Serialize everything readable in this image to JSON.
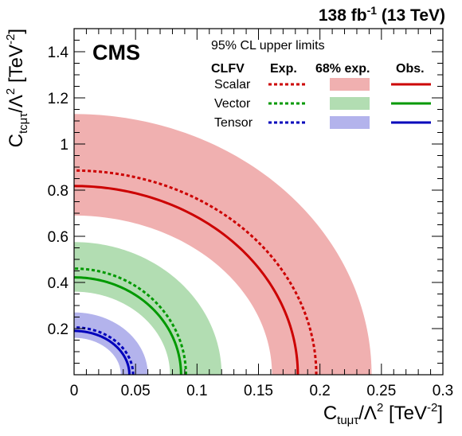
{
  "header": {
    "lumi_main": "138 fb",
    "lumi_exp": "-1",
    "lumi_energy": " (13 TeV)",
    "experiment": "CMS"
  },
  "legend": {
    "title": "95% CL upper limits",
    "col_model": "CLFV",
    "col_exp": "Exp.",
    "col_band": "68% exp.",
    "col_obs": "Obs."
  },
  "axes": {
    "x_label_base": "C",
    "x_label_sub": "tuμτ",
    "x_label_mid": "/Λ",
    "x_label_sup": "2",
    "x_label_unit": " [TeV",
    "x_label_unit_sup": "-2",
    "x_label_end": "]",
    "y_label_base": "C",
    "y_label_sub": "tcμτ",
    "y_label_mid": "/Λ",
    "y_label_sup": "2",
    "y_label_unit": " [TeV",
    "y_label_unit_sup": "-2",
    "y_label_end": "]"
  },
  "chart_data": {
    "type": "area",
    "title": "95% CL upper limits",
    "xlim": [
      0,
      0.3
    ],
    "ylim": [
      0,
      1.5
    ],
    "x_ticks": [
      "0",
      "0.05",
      "0.1",
      "0.15",
      "0.2",
      "0.25",
      "0.3"
    ],
    "y_ticks": [
      "0.2",
      "0.4",
      "0.6",
      "0.8",
      "1",
      "1.2",
      "1.4"
    ],
    "grid": false,
    "legend_position": "top-right",
    "series": [
      {
        "name": "Scalar",
        "color": "#cc0000",
        "band_color": "#f0b0b0",
        "expected": {
          "x_intercept": 0.197,
          "y_intercept": 0.885
        },
        "band": {
          "x_low": 0.161,
          "x_high": 0.242,
          "y_low": 0.69,
          "y_high": 1.13
        },
        "observed": {
          "x_intercept": 0.182,
          "y_intercept": 0.818
        }
      },
      {
        "name": "Vector",
        "color": "#009900",
        "band_color": "#b2ddb2",
        "expected": {
          "x_intercept": 0.091,
          "y_intercept": 0.46
        },
        "band": {
          "x_low": 0.078,
          "x_high": 0.12,
          "y_low": 0.36,
          "y_high": 0.575
        },
        "observed": {
          "x_intercept": 0.087,
          "y_intercept": 0.422
        }
      },
      {
        "name": "Tensor",
        "color": "#0000bb",
        "band_color": "#b3b3ec",
        "expected": {
          "x_intercept": 0.048,
          "y_intercept": 0.205
        },
        "band": {
          "x_low": 0.038,
          "x_high": 0.06,
          "y_low": 0.16,
          "y_high": 0.27
        },
        "observed": {
          "x_intercept": 0.045,
          "y_intercept": 0.19
        }
      }
    ]
  }
}
